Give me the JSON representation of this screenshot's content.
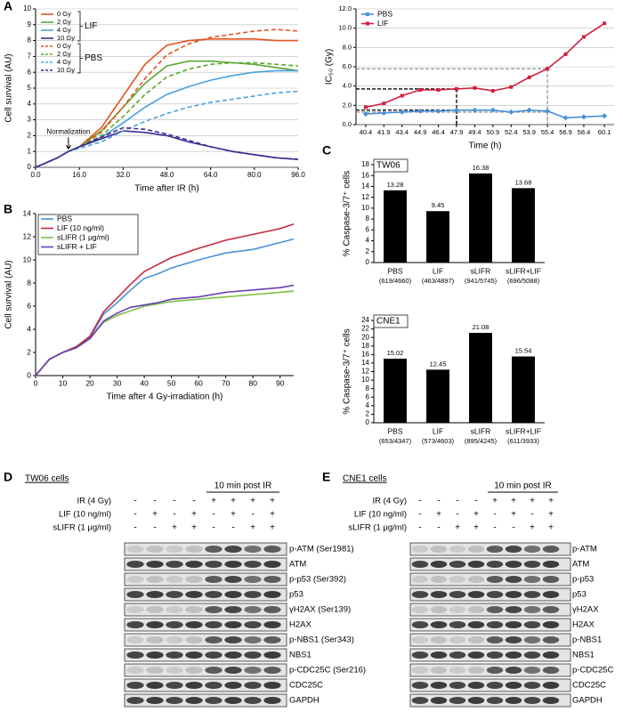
{
  "chart_data": [
    {
      "type": "line",
      "panel": "A",
      "x_label": "Time after IR (h)",
      "y_label": "Cell survival (AU)",
      "grid": true,
      "x": [
        0,
        8,
        12,
        16,
        24,
        32,
        40,
        48,
        56,
        64,
        72,
        80,
        88,
        96
      ],
      "xlim": [
        0,
        96
      ],
      "xticks": [
        {
          "value": 0,
          "label": "0.0"
        },
        {
          "value": 16,
          "label": "16.0"
        },
        {
          "value": 32,
          "label": "32.0"
        },
        {
          "value": 48,
          "label": "48.0"
        },
        {
          "value": 64,
          "label": "64.0"
        },
        {
          "value": 80,
          "label": "80.0"
        },
        {
          "value": 96,
          "label": "96.0"
        }
      ],
      "ylim": [
        0,
        10
      ],
      "yticks": [
        0,
        1,
        2,
        3,
        4,
        5,
        6,
        7,
        8,
        9,
        10
      ],
      "legend_position": "top-left",
      "legend_groups": [
        "LIF",
        "PBS"
      ],
      "annotation": {
        "text": "Normalization",
        "x": 12,
        "y": 1
      },
      "series": [
        {
          "name": "0 Gy",
          "color": "#e8501f",
          "line_style": "solid",
          "values": [
            0,
            0.6,
            1.0,
            1.3,
            2.5,
            4.5,
            6.5,
            7.7,
            8.0,
            8.1,
            8.1,
            8.1,
            8.0,
            8.0
          ]
        },
        {
          "name": "2 Gy",
          "color": "#5aa830",
          "line_style": "solid",
          "values": [
            0,
            0.6,
            1.0,
            1.3,
            2.3,
            3.8,
            5.3,
            6.4,
            6.7,
            6.7,
            6.6,
            6.5,
            6.3,
            6.1
          ]
        },
        {
          "name": "4 Gy",
          "color": "#4aa0e0",
          "line_style": "solid",
          "values": [
            0,
            0.6,
            1.0,
            1.3,
            1.9,
            2.8,
            3.8,
            4.6,
            5.1,
            5.5,
            5.8,
            6.0,
            6.1,
            6.1
          ]
        },
        {
          "name": "10 Gy",
          "color": "#3d2a90",
          "line_style": "solid",
          "values": [
            0,
            0.6,
            1.0,
            1.3,
            1.8,
            2.3,
            2.2,
            2.0,
            1.6,
            1.3,
            1.0,
            0.8,
            0.6,
            0.5
          ]
        },
        {
          "name": "0 Gy",
          "color": "#e8501f",
          "line_style": "dashed",
          "values": [
            0,
            0.6,
            1.0,
            1.3,
            2.2,
            3.8,
            5.6,
            7.1,
            7.8,
            8.2,
            8.4,
            8.6,
            8.7,
            8.6
          ]
        },
        {
          "name": "2 Gy",
          "color": "#5aa830",
          "line_style": "dashed",
          "values": [
            0,
            0.6,
            1.0,
            1.3,
            2.0,
            3.2,
            4.6,
            5.7,
            6.2,
            6.5,
            6.6,
            6.6,
            6.5,
            6.4
          ]
        },
        {
          "name": "4 Gy",
          "color": "#4aa0e0",
          "line_style": "dashed",
          "values": [
            0,
            0.6,
            1.0,
            1.2,
            1.6,
            2.3,
            2.9,
            3.4,
            3.8,
            4.1,
            4.3,
            4.5,
            4.7,
            4.8
          ]
        },
        {
          "name": "10 Gy",
          "color": "#3d2a90",
          "line_style": "dashed",
          "values": [
            0,
            0.6,
            1.0,
            1.3,
            1.9,
            2.5,
            2.4,
            2.1,
            1.7,
            1.3,
            1.0,
            0.8,
            0.6,
            0.5
          ]
        }
      ]
    },
    {
      "type": "line",
      "x_label": "Time (h)",
      "y_label": "IC₅₀ (Gy)",
      "grid": true,
      "x": [
        40.4,
        41.9,
        43.4,
        44.9,
        46.4,
        47.9,
        49.4,
        50.9,
        52.4,
        53.9,
        55.4,
        56.9,
        58.4,
        60.1
      ],
      "xlim": [
        39.6,
        60.9
      ],
      "xticks": [
        40.4,
        41.9,
        43.4,
        44.9,
        46.4,
        47.9,
        49.4,
        50.9,
        52.4,
        53.9,
        55.4,
        56.9,
        58.4,
        60.1
      ],
      "ylim": [
        0,
        12
      ],
      "yticks": [
        {
          "value": 0,
          "label": "0.0"
        },
        {
          "value": 2,
          "label": "2.0"
        },
        {
          "value": 4,
          "label": "4.0"
        },
        {
          "value": 6,
          "label": "6.0"
        },
        {
          "value": 8,
          "label": "8.0"
        },
        {
          "value": 10,
          "label": "10.0"
        },
        {
          "value": 12,
          "label": "12.0"
        }
      ],
      "legend_position": "top-left",
      "reference_lines": [
        {
          "x": 47.9,
          "y": 3.7,
          "color": "#000000"
        },
        {
          "x": 47.9,
          "y": 1.5,
          "color": "#000000"
        },
        {
          "x": 55.4,
          "y": 5.8,
          "color": "#999999"
        },
        {
          "x": 55.4,
          "y": 1.3,
          "color": "#999999"
        }
      ],
      "series": [
        {
          "name": "PBS",
          "color": "#4a90d9",
          "marker": "diamond",
          "values": [
            1.1,
            1.2,
            1.3,
            1.4,
            1.4,
            1.5,
            1.5,
            1.5,
            1.3,
            1.5,
            1.4,
            0.7,
            0.8,
            0.9
          ]
        },
        {
          "name": "LIF",
          "color": "#d0213d",
          "marker": "square",
          "values": [
            1.8,
            2.2,
            3.0,
            3.6,
            3.6,
            3.7,
            3.8,
            3.5,
            3.9,
            4.9,
            5.8,
            7.3,
            9.1,
            10.5
          ]
        }
      ]
    },
    {
      "type": "line",
      "panel": "B",
      "x_label": "Time after 4 Gy-irradiation (h)",
      "y_label": "Cell survival (AU)",
      "grid": false,
      "x": [
        0,
        5,
        10,
        15,
        20,
        25,
        30,
        35,
        40,
        45,
        50,
        60,
        70,
        80,
        90,
        95
      ],
      "xlim": [
        0,
        95
      ],
      "xticks": [
        0,
        10,
        20,
        30,
        40,
        50,
        60,
        70,
        80,
        90
      ],
      "ylim": [
        0,
        14
      ],
      "yticks": [
        0,
        2,
        4,
        6,
        8,
        10,
        12,
        14
      ],
      "legend_position": "top-left",
      "series": [
        {
          "name": "PBS",
          "color": "#4a90d9",
          "values": [
            0,
            1.4,
            2.0,
            2.5,
            3.3,
            5.3,
            6.3,
            7.4,
            8.4,
            8.8,
            9.3,
            10.0,
            10.6,
            10.9,
            11.5,
            11.8
          ]
        },
        {
          "name": "LIF (10 ng/ml)",
          "color": "#c8283c",
          "values": [
            0,
            1.4,
            2.0,
            2.5,
            3.4,
            5.5,
            6.7,
            7.9,
            9.0,
            9.6,
            10.2,
            11.0,
            11.7,
            12.2,
            12.7,
            13.1
          ]
        },
        {
          "name": "sLIFR (1 μg/ml)",
          "color": "#7dc242",
          "values": [
            0,
            1.4,
            2.0,
            2.4,
            3.2,
            4.6,
            5.2,
            5.6,
            6.0,
            6.2,
            6.4,
            6.6,
            6.8,
            7.0,
            7.2,
            7.3
          ]
        },
        {
          "name": "sLIFR + LIF",
          "color": "#6a3fb5",
          "values": [
            0,
            1.4,
            2.0,
            2.4,
            3.2,
            4.7,
            5.4,
            5.9,
            6.1,
            6.3,
            6.6,
            6.8,
            7.2,
            7.4,
            7.6,
            7.8
          ]
        }
      ]
    },
    {
      "type": "bar",
      "panel": "C",
      "title": "TW06",
      "y_label": "% Caspase-3/7⁺ cells",
      "color": "#000000",
      "categories": [
        "PBS",
        "LIF",
        "sLIFR",
        "sLIFR+LIF"
      ],
      "category_sublabels": [
        "(619/4660)",
        "(463/4897)",
        "(941/5745)",
        "(696/5088)"
      ],
      "values": [
        13.28,
        9.45,
        16.38,
        13.68
      ],
      "ylim": [
        0,
        18
      ],
      "yticks": [
        0,
        2,
        4,
        6,
        8,
        10,
        12,
        14,
        16,
        18
      ]
    },
    {
      "type": "bar",
      "title": "CNE1",
      "y_label": "% Caspase-3/7⁺ cells",
      "color": "#000000",
      "categories": [
        "PBS",
        "LIF",
        "sLIFR",
        "sLIFR+LIF"
      ],
      "category_sublabels": [
        "(653/4347)",
        "(573/4603)",
        "(895/4245)",
        "(611/3933)"
      ],
      "values": [
        15.02,
        12.45,
        21.08,
        15.54
      ],
      "ylim": [
        0,
        24
      ],
      "yticks": [
        0,
        2,
        4,
        6,
        8,
        10,
        12,
        14,
        16,
        18,
        20,
        22,
        24
      ]
    }
  ],
  "blots": [
    {
      "panel": "D",
      "title": "TW06 cells",
      "header": "10 min post IR",
      "conditions": [
        {
          "label": "IR (4 Gy)",
          "signs": [
            "-",
            "-",
            "-",
            "-",
            "+",
            "+",
            "+",
            "+"
          ]
        },
        {
          "label": "LIF (10 ng/ml)",
          "signs": [
            "-",
            "+",
            "-",
            "+",
            "-",
            "+",
            "-",
            "+"
          ]
        },
        {
          "label": "sLIFR (1 μg/ml)",
          "signs": [
            "-",
            "-",
            "+",
            "+",
            "-",
            "-",
            "+",
            "+"
          ]
        }
      ],
      "bands": [
        "p-ATM (Ser1981)",
        "ATM",
        "p-p53 (Ser392)",
        "p53",
        "γH2AX (Ser139)",
        "H2AX",
        "p-NBS1 (Ser343)",
        "NBS1",
        "p-CDC25C (Ser216)",
        "CDC25C",
        "GAPDH"
      ]
    },
    {
      "panel": "E",
      "title": "CNE1 cells",
      "header": "10 min post IR",
      "conditions": [
        {
          "label": "IR (4 Gy)",
          "signs": [
            "-",
            "-",
            "-",
            "-",
            "+",
            "+",
            "+",
            "+"
          ]
        },
        {
          "label": "LIF (10 ng/ml)",
          "signs": [
            "-",
            "+",
            "-",
            "+",
            "-",
            "+",
            "-",
            "+"
          ]
        },
        {
          "label": "sLIFR (1 μg/ml)",
          "signs": [
            "-",
            "-",
            "+",
            "+",
            "-",
            "-",
            "+",
            "+"
          ]
        }
      ],
      "bands": [
        "p-ATM",
        "ATM",
        "p-p53",
        "p53",
        "γH2AX",
        "H2AX",
        "p-NBS1",
        "NBS1",
        "p-CDC25C",
        "CDC25C",
        "GAPDH"
      ]
    }
  ]
}
